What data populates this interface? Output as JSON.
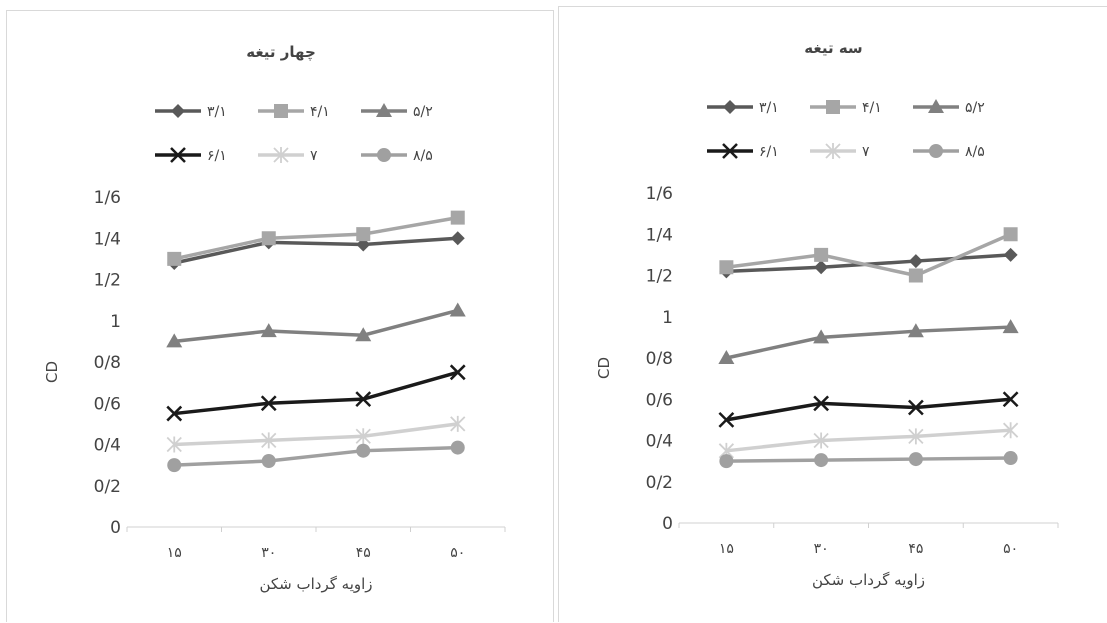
{
  "chart_data": [
    {
      "type": "line",
      "title": "چهار تیغه",
      "xlabel": "زاویه گرداب شکن",
      "ylabel": "CD",
      "categories": [
        "۱۵",
        "۳۰",
        "۴۵",
        "۵۰"
      ],
      "ylim": [
        0,
        1.6
      ],
      "y_ticks": [
        "0",
        "0/2",
        "0/4",
        "0/6",
        "0/8",
        "1",
        "1/2",
        "1/4",
        "1/6"
      ],
      "legend_placement": "top",
      "series": [
        {
          "name": "۳/۱",
          "values": [
            1.28,
            1.38,
            1.37,
            1.4
          ],
          "color": "#595959",
          "marker": "diamond"
        },
        {
          "name": "۴/۱",
          "values": [
            1.3,
            1.4,
            1.42,
            1.5
          ],
          "color": "#a6a6a6",
          "marker": "square"
        },
        {
          "name": "۵/۲",
          "values": [
            0.9,
            0.95,
            0.93,
            1.05
          ],
          "color": "#808080",
          "marker": "triangle"
        },
        {
          "name": "۶/۱",
          "values": [
            0.55,
            0.6,
            0.62,
            0.75
          ],
          "color": "#1a1a1a",
          "marker": "x"
        },
        {
          "name": "۷",
          "values": [
            0.4,
            0.42,
            0.44,
            0.5
          ],
          "color": "#d0d0d0",
          "marker": "star"
        },
        {
          "name": "۸/۵",
          "values": [
            0.3,
            0.32,
            0.37,
            0.385
          ],
          "color": "#a0a0a0",
          "marker": "circle"
        }
      ]
    },
    {
      "type": "line",
      "title": "سه تیغه",
      "xlabel": "زاویه گرداب شکن",
      "ylabel": "CD",
      "categories": [
        "۱۵",
        "۳۰",
        "۴۵",
        "۵۰"
      ],
      "ylim": [
        0,
        1.6
      ],
      "y_ticks": [
        "0",
        "0/2",
        "0/4",
        "0/6",
        "0/8",
        "1",
        "1/2",
        "1/4",
        "1/6"
      ],
      "legend_placement": "top",
      "series": [
        {
          "name": "۳/۱",
          "values": [
            1.22,
            1.24,
            1.27,
            1.3
          ],
          "color": "#595959",
          "marker": "diamond"
        },
        {
          "name": "۴/۱",
          "values": [
            1.24,
            1.3,
            1.2,
            1.4
          ],
          "color": "#a6a6a6",
          "marker": "square"
        },
        {
          "name": "۵/۲",
          "values": [
            0.8,
            0.9,
            0.93,
            0.95
          ],
          "color": "#808080",
          "marker": "triangle"
        },
        {
          "name": "۶/۱",
          "values": [
            0.5,
            0.58,
            0.56,
            0.6
          ],
          "color": "#1a1a1a",
          "marker": "x"
        },
        {
          "name": "۷",
          "values": [
            0.35,
            0.4,
            0.42,
            0.45
          ],
          "color": "#d0d0d0",
          "marker": "star"
        },
        {
          "name": "۸/۵",
          "values": [
            0.3,
            0.305,
            0.31,
            0.315
          ],
          "color": "#a0a0a0",
          "marker": "circle"
        }
      ]
    }
  ]
}
